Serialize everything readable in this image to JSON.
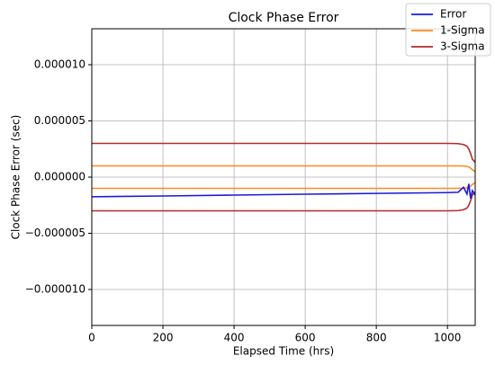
{
  "chart_data": {
    "type": "line",
    "title": "Clock Phase Error",
    "x_label": "Elapsed Time (hrs)",
    "y_label": "Clock Phase Error (sec)",
    "x": [
      0,
      200,
      400,
      600,
      800,
      1000,
      1030,
      1045,
      1055,
      1060,
      1065,
      1070,
      1078
    ],
    "series": [
      {
        "name": "Error",
        "color": "#1a1adb",
        "values": [
          -1.75e-06,
          -1.68e-06,
          -1.6e-06,
          -1.52e-06,
          -1.45e-06,
          -1.38e-06,
          -1.35e-06,
          -9e-07,
          -1.5e-06,
          -6e-07,
          -1.9e-06,
          -1.2e-06,
          -1.6e-06
        ]
      },
      {
        "name": "1-Sigma",
        "color": "#ff8c1a",
        "values": [
          1e-06,
          1e-06,
          1e-06,
          1e-06,
          1e-06,
          1e-06,
          1e-06,
          9.8e-07,
          9.5e-07,
          9e-07,
          8e-07,
          6.5e-07,
          5e-07
        ],
        "lower": [
          -1e-06,
          -1e-06,
          -1e-06,
          -1e-06,
          -1e-06,
          -1e-06,
          -1e-06,
          -9.8e-07,
          -9.5e-07,
          -9e-07,
          -8e-07,
          -6.5e-07,
          -5e-07
        ]
      },
      {
        "name": "3-Sigma",
        "color": "#b52a2a",
        "values": [
          3e-06,
          3e-06,
          3e-06,
          3e-06,
          3e-06,
          3e-06,
          2.98e-06,
          2.9e-06,
          2.75e-06,
          2.5e-06,
          2.1e-06,
          1.6e-06,
          1.3e-06
        ],
        "lower": [
          -3e-06,
          -3e-06,
          -3e-06,
          -3e-06,
          -3e-06,
          -3e-06,
          -2.98e-06,
          -2.9e-06,
          -2.75e-06,
          -2.5e-06,
          -2.1e-06,
          -1.6e-06,
          -1.3e-06
        ]
      }
    ],
    "xlim": [
      0,
      1078
    ],
    "xticks": [
      0,
      200,
      400,
      600,
      800,
      1000
    ],
    "ylim": [
      -1.32e-05,
      1.32e-05
    ],
    "yticks": [
      {
        "value": -1e-05,
        "label": "−0.000010"
      },
      {
        "value": -5e-06,
        "label": "−0.000005"
      },
      {
        "value": 0,
        "label": "0.000000"
      },
      {
        "value": 5e-06,
        "label": "0.000005"
      },
      {
        "value": 1e-05,
        "label": "0.000010"
      }
    ],
    "grid": true,
    "legend": "upper right"
  }
}
